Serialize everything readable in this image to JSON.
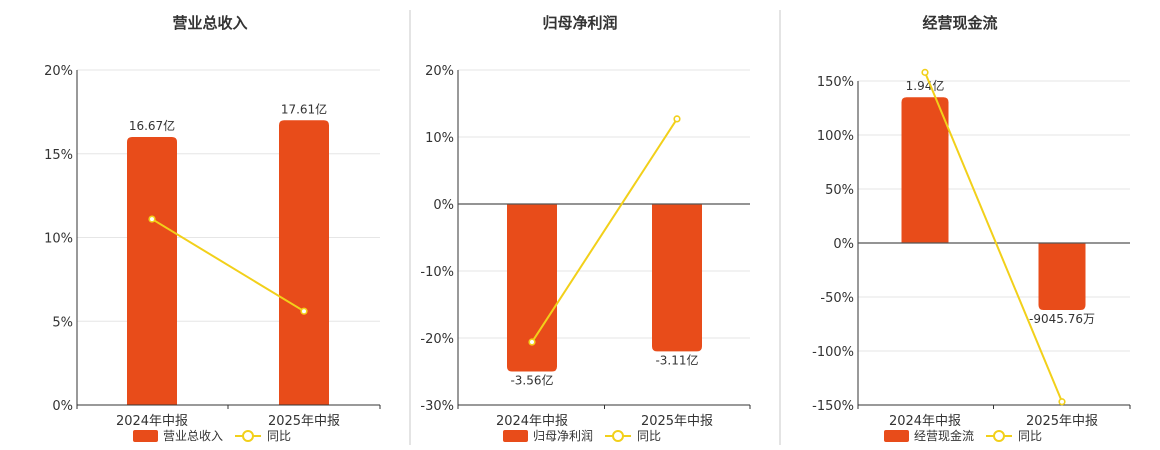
{
  "colors": {
    "bar": "#E84C1A",
    "line": "#F2D01A"
  },
  "chart_data": [
    {
      "type": "bar",
      "title": "营业总收入",
      "categories": [
        "2024年中报",
        "2025年中报"
      ],
      "yticks": [
        "0%",
        "5%",
        "10%",
        "15%",
        "20%"
      ],
      "ylim": [
        0,
        20
      ],
      "series": [
        {
          "name": "营业总收入",
          "kind": "bar",
          "values": [
            16.0,
            17.0
          ],
          "labels": [
            "16.67亿",
            "17.61亿"
          ]
        },
        {
          "name": "同比",
          "kind": "line",
          "values": [
            11.1,
            5.6
          ]
        }
      ]
    },
    {
      "type": "bar",
      "title": "归母净利润",
      "categories": [
        "2024年中报",
        "2025年中报"
      ],
      "yticks": [
        "-30%",
        "-20%",
        "-10%",
        "0%",
        "10%",
        "20%"
      ],
      "ylim": [
        -30,
        20
      ],
      "series": [
        {
          "name": "归母净利润",
          "kind": "bar",
          "values": [
            -25.0,
            -22.0
          ],
          "labels": [
            "-3.56亿",
            "-3.11亿"
          ]
        },
        {
          "name": "同比",
          "kind": "line",
          "values": [
            -20.6,
            12.7
          ]
        }
      ]
    },
    {
      "type": "bar",
      "title": "经营现金流",
      "categories": [
        "2024年中报",
        "2025年中报"
      ],
      "yticks": [
        "-150%",
        "-100%",
        "-50%",
        "0%",
        "50%",
        "100%",
        "150%"
      ],
      "ylim": [
        -150,
        150
      ],
      "series": [
        {
          "name": "经营现金流",
          "kind": "bar",
          "values": [
            135.0,
            -62.0
          ],
          "labels": [
            "1.94亿",
            "-9045.76万"
          ]
        },
        {
          "name": "同比",
          "kind": "line",
          "values": [
            158.0,
            -147.0
          ]
        }
      ]
    }
  ]
}
